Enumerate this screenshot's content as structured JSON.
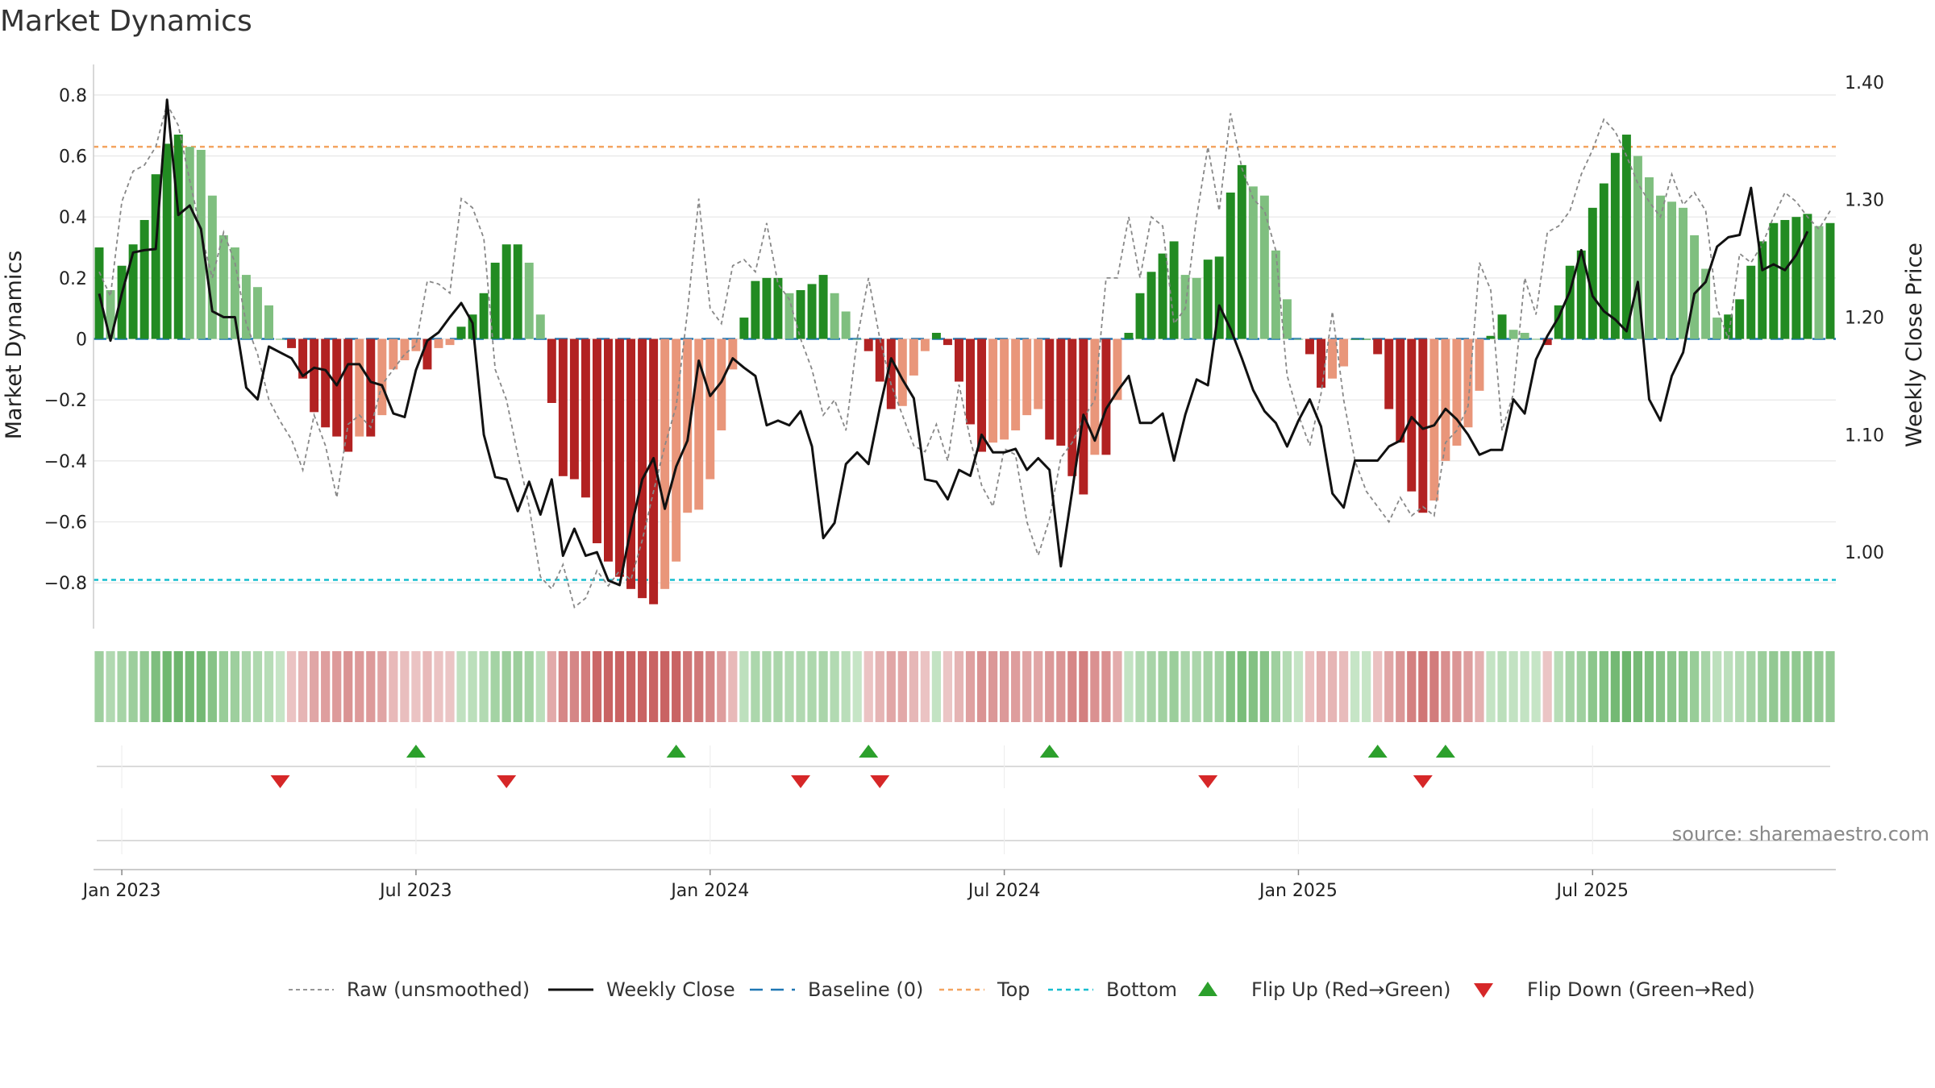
{
  "chart_data": {
    "type": "bar",
    "title": "Market Dynamics",
    "ylabel_left": "Market Dynamics",
    "ylabel_right": "Weekly Close Price",
    "ylim_left": [
      -0.95,
      0.9
    ],
    "ylim_right": [
      0.935,
      1.415
    ],
    "left_ticks": [
      0.8,
      0.6,
      0.4,
      0.2,
      0,
      -0.2,
      -0.4,
      -0.6,
      -0.8
    ],
    "left_tick_labels": [
      "0.8",
      "0.6",
      "0.4",
      "0.2",
      "0",
      "−0.2",
      "−0.4",
      "−0.6",
      "−0.8"
    ],
    "right_ticks": [
      1.4,
      1.3,
      1.2,
      1.1,
      1.0
    ],
    "right_tick_labels": [
      "1.40",
      "1.30",
      "1.20",
      "1.10",
      "1.00"
    ],
    "x_ticks": [
      0,
      26,
      52,
      78,
      104,
      130
    ],
    "x_tick_labels": [
      "Jan 2023",
      "Jul 2023",
      "Jan 2024",
      "Jul 2024",
      "Jan 2025",
      "Jul 2025"
    ],
    "x_start_week": -2,
    "top_level": 0.63,
    "bottom_level": -0.79,
    "baseline": 0,
    "dynamics": [
      0.3,
      0.16,
      0.24,
      0.31,
      0.39,
      0.54,
      0.64,
      0.67,
      0.63,
      0.62,
      0.47,
      0.34,
      0.3,
      0.21,
      0.17,
      0.11,
      0.0,
      -0.03,
      -0.13,
      -0.24,
      -0.29,
      -0.32,
      -0.37,
      -0.32,
      -0.32,
      -0.25,
      -0.1,
      -0.07,
      -0.04,
      -0.1,
      -0.03,
      -0.02,
      0.04,
      0.08,
      0.15,
      0.25,
      0.31,
      0.31,
      0.25,
      0.08,
      -0.21,
      -0.45,
      -0.46,
      -0.52,
      -0.67,
      -0.73,
      -0.78,
      -0.82,
      -0.85,
      -0.87,
      -0.82,
      -0.73,
      -0.57,
      -0.56,
      -0.46,
      -0.3,
      -0.1,
      0.07,
      0.19,
      0.2,
      0.2,
      0.15,
      0.16,
      0.18,
      0.21,
      0.15,
      0.09,
      0.0,
      -0.04,
      -0.14,
      -0.23,
      -0.22,
      -0.12,
      -0.04,
      0.02,
      -0.02,
      -0.14,
      -0.28,
      -0.37,
      -0.34,
      -0.33,
      -0.3,
      -0.25,
      -0.23,
      -0.33,
      -0.35,
      -0.45,
      -0.51,
      -0.38,
      -0.38,
      -0.2,
      0.02,
      0.15,
      0.22,
      0.28,
      0.32,
      0.21,
      0.2,
      0.26,
      0.27,
      0.48,
      0.57,
      0.5,
      0.47,
      0.29,
      0.13,
      0.0,
      -0.05,
      -0.16,
      -0.13,
      -0.09,
      0.0,
      0.0,
      -0.05,
      -0.23,
      -0.34,
      -0.5,
      -0.57,
      -0.53,
      -0.4,
      -0.35,
      -0.29,
      -0.17,
      0.01,
      0.08,
      0.03,
      0.02,
      0.0,
      -0.02,
      0.11,
      0.24,
      0.29,
      0.43,
      0.51,
      0.61,
      0.67,
      0.6,
      0.53,
      0.47,
      0.45,
      0.43,
      0.34,
      0.23,
      0.07,
      0.08,
      0.13,
      0.24,
      0.32,
      0.38,
      0.39,
      0.4,
      0.41,
      0.37,
      0.38
    ],
    "raw": [
      0.22,
      0.14,
      0.45,
      0.55,
      0.57,
      0.63,
      0.77,
      0.7,
      0.52,
      0.35,
      0.2,
      0.35,
      0.25,
      0.05,
      -0.05,
      -0.2,
      -0.27,
      -0.33,
      -0.43,
      -0.25,
      -0.35,
      -0.52,
      -0.28,
      -0.25,
      -0.29,
      -0.15,
      -0.1,
      -0.05,
      -0.02,
      0.19,
      0.18,
      0.15,
      0.46,
      0.43,
      0.33,
      -0.1,
      -0.2,
      -0.38,
      -0.55,
      -0.78,
      -0.82,
      -0.74,
      -0.88,
      -0.85,
      -0.76,
      -0.81,
      -0.76,
      -0.79,
      -0.66,
      -0.5,
      -0.35,
      -0.22,
      0.09,
      0.46,
      0.1,
      0.05,
      0.24,
      0.26,
      0.22,
      0.38,
      0.18,
      0.13,
      0.0,
      -0.1,
      -0.25,
      -0.2,
      -0.3,
      0.0,
      0.2,
      0.0,
      -0.15,
      -0.25,
      -0.35,
      -0.37,
      -0.28,
      -0.4,
      -0.15,
      -0.33,
      -0.48,
      -0.55,
      -0.36,
      -0.38,
      -0.6,
      -0.71,
      -0.59,
      -0.39,
      -0.34,
      -0.26,
      -0.2,
      0.2,
      0.2,
      0.4,
      0.2,
      0.4,
      0.37,
      0.05,
      0.1,
      0.4,
      0.63,
      0.42,
      0.74,
      0.56,
      0.46,
      0.42,
      0.29,
      -0.12,
      -0.25,
      -0.35,
      -0.18,
      0.09,
      -0.2,
      -0.4,
      -0.5,
      -0.55,
      -0.6,
      -0.52,
      -0.58,
      -0.55,
      -0.58,
      -0.34,
      -0.3,
      -0.22,
      0.25,
      0.16,
      -0.3,
      -0.18,
      0.2,
      0.08,
      0.35,
      0.37,
      0.42,
      0.54,
      0.62,
      0.72,
      0.68,
      0.6,
      0.51,
      0.45,
      0.4,
      0.54,
      0.44,
      0.48,
      0.42,
      0.1,
      0.0,
      0.28,
      0.25,
      0.31,
      0.4,
      0.48,
      0.45,
      0.4,
      0.36,
      0.42
    ],
    "weekly_close": [
      1.22,
      1.18,
      1.22,
      1.255,
      1.257,
      1.258,
      1.385,
      1.287,
      1.295,
      1.275,
      1.205,
      1.2,
      1.2,
      1.14,
      1.13,
      1.175,
      1.17,
      1.165,
      1.15,
      1.157,
      1.155,
      1.142,
      1.16,
      1.16,
      1.145,
      1.142,
      1.118,
      1.115,
      1.155,
      1.18,
      1.187,
      1.2,
      1.212,
      1.195,
      1.1,
      1.064,
      1.062,
      1.035,
      1.06,
      1.032,
      1.062,
      0.997,
      1.02,
      0.997,
      1.0,
      0.976,
      0.972,
      1.02,
      1.062,
      1.08,
      1.037,
      1.073,
      1.095,
      1.163,
      1.133,
      1.145,
      1.165,
      1.157,
      1.15,
      1.108,
      1.112,
      1.108,
      1.12,
      1.09,
      1.012,
      1.025,
      1.075,
      1.085,
      1.075,
      1.123,
      1.165,
      1.147,
      1.131,
      1.062,
      1.06,
      1.045,
      1.07,
      1.065,
      1.1,
      1.085,
      1.085,
      1.088,
      1.07,
      1.08,
      1.07,
      0.988,
      1.052,
      1.117,
      1.095,
      1.122,
      1.137,
      1.15,
      1.11,
      1.11,
      1.118,
      1.078,
      1.117,
      1.147,
      1.142,
      1.21,
      1.19,
      1.165,
      1.138,
      1.12,
      1.11,
      1.09,
      1.112,
      1.13,
      1.107,
      1.05,
      1.038,
      1.078,
      1.078,
      1.078,
      1.09,
      1.095,
      1.115,
      1.105,
      1.108,
      1.122,
      1.113,
      1.1,
      1.083,
      1.087,
      1.087,
      1.13,
      1.118,
      1.164,
      1.184,
      1.2,
      1.222,
      1.257,
      1.218,
      1.205,
      1.198,
      1.188,
      1.23,
      1.13,
      1.112,
      1.15,
      1.17,
      1.22,
      1.23,
      1.26,
      1.268,
      1.27,
      1.31,
      1.24,
      1.245,
      1.24,
      1.253,
      1.273
    ],
    "flip_up_weeks": [
      26,
      49,
      66,
      82,
      111,
      117
    ],
    "flip_down_weeks": [
      14,
      34,
      60,
      67,
      96,
      115
    ],
    "legend": [
      "Raw (unsmoothed)",
      "Weekly Close",
      "Baseline (0)",
      "Top",
      "Bottom",
      "Flip Up (Red→Green)",
      "Flip Down (Green→Red)"
    ],
    "source": "source: sharemaestro.com"
  },
  "colors": {
    "pos_strong": "#228b22",
    "pos_weak": "#7fbf7f",
    "neg_strong": "#b22222",
    "neg_weak": "#e9967a",
    "close_line": "#111111",
    "raw_line": "#888888",
    "baseline": "#1f77b4",
    "top": "#f4a460",
    "bottom": "#17becf",
    "flip_up": "#2ca02c",
    "flip_down": "#d62728",
    "grid": "#e6e6e6"
  }
}
